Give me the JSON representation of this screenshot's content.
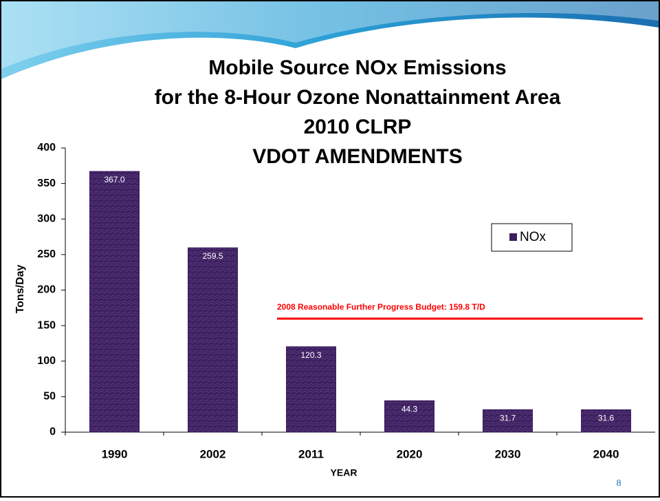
{
  "chart_data": {
    "type": "bar",
    "title": [
      "Mobile Source NOx Emissions",
      "for the 8-Hour Ozone Nonattainment Area",
      "2010 CLRP",
      "VDOT AMENDMENTS"
    ],
    "x_label": "YEAR",
    "y_label": "Tons/Day",
    "categories": [
      "1990",
      "2002",
      "2011",
      "2020",
      "2030",
      "2040"
    ],
    "series": [
      {
        "name": "NOx",
        "color": "#3b1f5e",
        "values": [
          367.0,
          259.5,
          120.3,
          44.3,
          31.7,
          31.6
        ],
        "value_labels": [
          "367.0",
          "259.5",
          "120.3",
          "44.3",
          "31.7",
          "31.6"
        ]
      }
    ],
    "ylim": [
      0,
      400
    ],
    "yticks": [
      0,
      50,
      100,
      150,
      200,
      250,
      300,
      350,
      400
    ],
    "legend": "right",
    "reference_line": {
      "value": 159.8,
      "label": "2008 Reasonable Further Progress Budget: 159.8 T/D",
      "color": "#ff0000"
    }
  },
  "page_number": "8"
}
